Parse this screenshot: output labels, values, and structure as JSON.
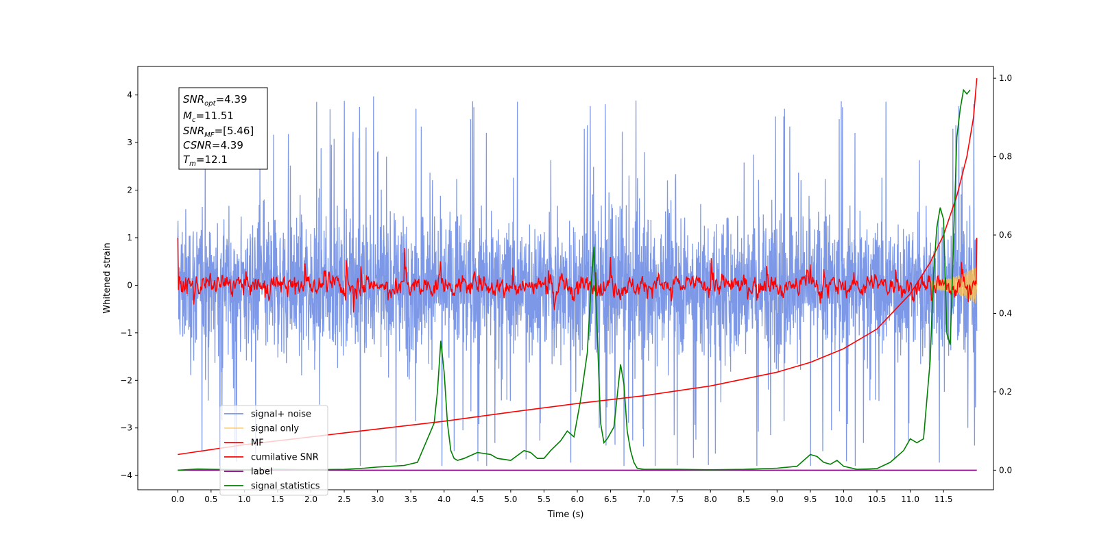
{
  "chart_data": {
    "type": "line",
    "xlabel": "Time (s)",
    "ylabel": "Whitened strain",
    "xlim": [
      -0.6,
      12.25
    ],
    "ylim": [
      -4.3,
      4.6
    ],
    "y2lim": [
      -0.05,
      1.03
    ],
    "x_ticks": [
      "0.0",
      "0.5",
      "1.0",
      "1.5",
      "2.0",
      "2.5",
      "3.0",
      "3.5",
      "4.0",
      "4.5",
      "5.0",
      "5.5",
      "6.0",
      "6.5",
      "7.0",
      "7.5",
      "8.0",
      "8.5",
      "9.0",
      "9.5",
      "10.0",
      "10.5",
      "11.0",
      "11.5"
    ],
    "y_ticks": [
      "4",
      "3",
      "2",
      "1",
      "0",
      "−1",
      "−2",
      "−3",
      "−4"
    ],
    "y2_ticks": [
      "1.0",
      "0.8",
      "0.6",
      "0.4",
      "0.2",
      "0.0"
    ],
    "annotation": {
      "snr_opt": {
        "base": "SNR",
        "sub": "opt",
        "value": "=4.39"
      },
      "mc": {
        "base": "M",
        "sub": "c",
        "value": "=11.51"
      },
      "snr_mf": {
        "base": "SNR",
        "sub": "MF",
        "value": "=[5.46]"
      },
      "csnr": {
        "base": "CSNR",
        "sub": "",
        "value": "=4.39"
      },
      "tm": {
        "base": "T",
        "sub": "m",
        "value": "=12.1"
      }
    },
    "legend": {
      "placement": "lower-left",
      "entries": [
        {
          "label": "signal+ noise",
          "color": "#7692e6"
        },
        {
          "label": "signal only",
          "color": "#ffc04d"
        },
        {
          "label": "MF",
          "color": "#ff0000"
        },
        {
          "label": "cumilative SNR",
          "color": "#ff0000"
        },
        {
          "label": "label",
          "color": "#800080"
        },
        {
          "label": "signal statistics",
          "color": "#008000"
        }
      ]
    },
    "series": [
      {
        "name": "signal+ noise",
        "axis": "left",
        "description_range": [
          -3.8,
          4.2
        ],
        "t_range": [
          0,
          12.0
        ]
      },
      {
        "name": "signal only",
        "axis": "left",
        "t_range": [
          11.3,
          12.0
        ]
      },
      {
        "name": "MF",
        "axis": "left",
        "t_range": [
          0,
          12.0
        ]
      },
      {
        "name": "cumilative SNR",
        "axis": "right",
        "t": [
          0,
          1,
          2,
          3,
          4,
          5,
          6,
          7,
          8,
          9,
          9.5,
          10,
          10.5,
          11,
          11.3,
          11.5,
          11.7,
          11.85,
          11.95,
          12.0
        ],
        "y": [
          0.04,
          0.065,
          0.085,
          0.105,
          0.125,
          0.148,
          0.17,
          0.19,
          0.215,
          0.25,
          0.275,
          0.31,
          0.36,
          0.45,
          0.53,
          0.6,
          0.7,
          0.8,
          0.9,
          1.0
        ]
      },
      {
        "name": "label",
        "axis": "right",
        "t": [
          0,
          12.0
        ],
        "y": [
          0.0,
          0.0
        ]
      },
      {
        "name": "signal statistics",
        "axis": "right",
        "t": [
          0,
          0.3,
          0.5,
          1,
          1.5,
          2,
          2.5,
          2.8,
          3,
          3.2,
          3.4,
          3.6,
          3.75,
          3.85,
          3.9,
          3.95,
          4.0,
          4.05,
          4.1,
          4.15,
          4.2,
          4.3,
          4.5,
          4.7,
          4.8,
          5.0,
          5.2,
          5.3,
          5.4,
          5.5,
          5.6,
          5.75,
          5.85,
          5.95,
          6.05,
          6.15,
          6.2,
          6.25,
          6.3,
          6.35,
          6.4,
          6.45,
          6.55,
          6.65,
          6.7,
          6.75,
          6.8,
          6.85,
          6.9,
          7.0,
          7.5,
          8.0,
          8.5,
          9.0,
          9.3,
          9.5,
          9.6,
          9.7,
          9.8,
          9.9,
          10.0,
          10.2,
          10.5,
          10.7,
          10.9,
          11.0,
          11.1,
          11.2,
          11.3,
          11.35,
          11.4,
          11.45,
          11.5,
          11.55,
          11.6,
          11.65,
          11.7,
          11.75,
          11.8,
          11.85,
          11.9
        ],
        "y": [
          0.0,
          0.003,
          0.002,
          0.001,
          0.002,
          0.001,
          0.002,
          0.005,
          0.008,
          0.01,
          0.012,
          0.02,
          0.08,
          0.12,
          0.2,
          0.33,
          0.25,
          0.12,
          0.05,
          0.03,
          0.025,
          0.03,
          0.045,
          0.04,
          0.03,
          0.025,
          0.05,
          0.045,
          0.03,
          0.03,
          0.05,
          0.075,
          0.1,
          0.085,
          0.18,
          0.3,
          0.45,
          0.57,
          0.35,
          0.12,
          0.07,
          0.08,
          0.11,
          0.27,
          0.22,
          0.1,
          0.05,
          0.02,
          0.005,
          0.002,
          0.002,
          0.001,
          0.002,
          0.005,
          0.01,
          0.04,
          0.035,
          0.02,
          0.015,
          0.025,
          0.01,
          0.002,
          0.004,
          0.02,
          0.05,
          0.08,
          0.07,
          0.08,
          0.28,
          0.5,
          0.62,
          0.67,
          0.64,
          0.35,
          0.32,
          0.58,
          0.85,
          0.92,
          0.97,
          0.96,
          0.97
        ]
      }
    ]
  }
}
